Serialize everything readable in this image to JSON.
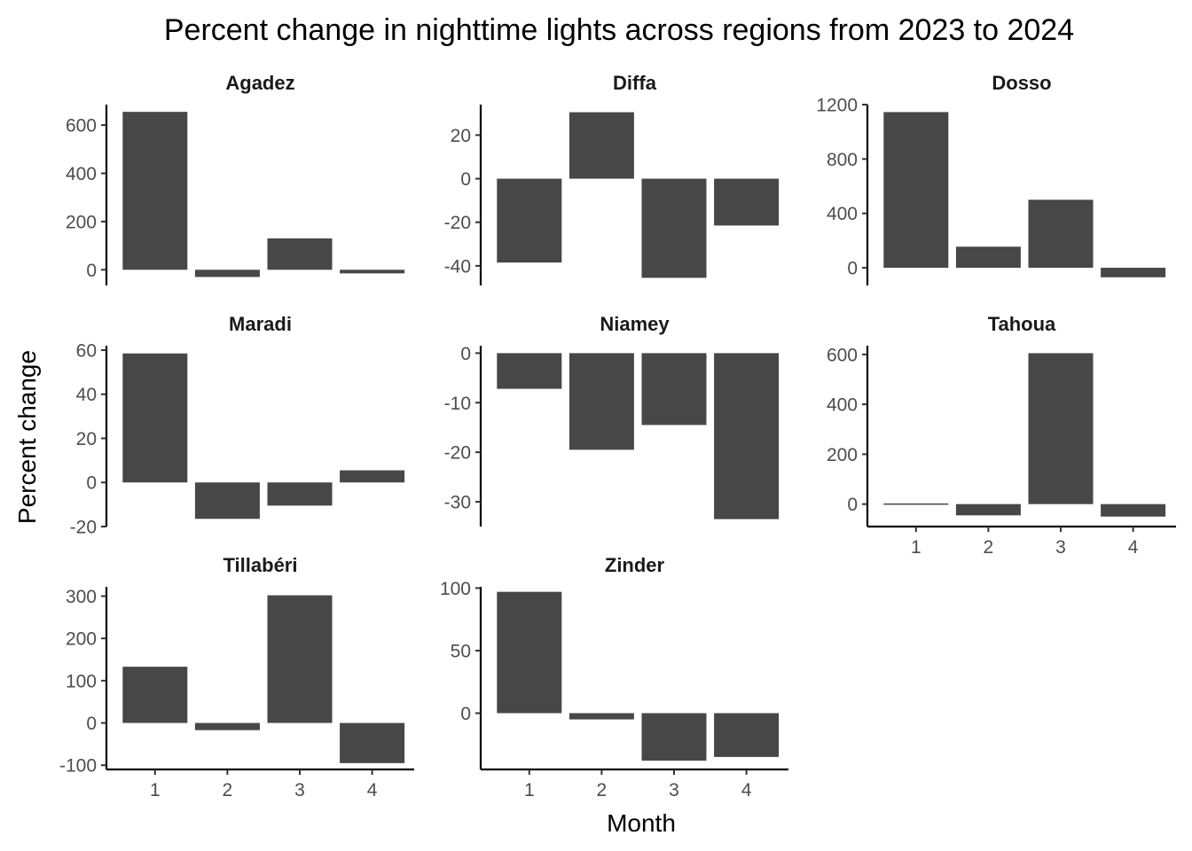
{
  "chart_data": {
    "type": "bar",
    "title": "Percent change in nighttime lights across regions from 2023 to 2024",
    "xlabel": "Month",
    "ylabel": "Percent change",
    "x_ticks": [
      "1",
      "2",
      "3",
      "4"
    ],
    "bar_color": "#474747",
    "grid": false,
    "legend": "none",
    "facets": [
      {
        "name": "Agadez",
        "x": [
          1,
          2,
          3,
          4
        ],
        "values": [
          655,
          -30,
          130,
          -15
        ],
        "ylim": [
          -65,
          685
        ],
        "yticks": [
          0,
          200,
          400,
          600
        ],
        "x_axis_shown": false
      },
      {
        "name": "Diffa",
        "x": [
          1,
          2,
          3,
          4
        ],
        "values": [
          -38.5,
          30.5,
          -45.5,
          -21.5
        ],
        "ylim": [
          -49,
          34
        ],
        "yticks": [
          -40,
          -20,
          0,
          20
        ],
        "x_axis_shown": false
      },
      {
        "name": "Dosso",
        "x": [
          1,
          2,
          3,
          4
        ],
        "values": [
          1145,
          155,
          500,
          -70
        ],
        "ylim": [
          -130,
          1200
        ],
        "yticks": [
          0,
          400,
          800,
          1200
        ],
        "x_axis_shown": false
      },
      {
        "name": "Maradi",
        "x": [
          1,
          2,
          3,
          4
        ],
        "values": [
          58.5,
          -16.5,
          -10.5,
          5.5
        ],
        "ylim": [
          -20,
          62
        ],
        "yticks": [
          -20,
          0,
          20,
          40,
          60
        ],
        "x_axis_shown": false
      },
      {
        "name": "Niamey",
        "x": [
          1,
          2,
          3,
          4
        ],
        "values": [
          -7.2,
          -19.5,
          -14.5,
          -33.5
        ],
        "ylim": [
          -35,
          1.5
        ],
        "yticks": [
          -30,
          -20,
          -10,
          0
        ],
        "x_axis_shown": false
      },
      {
        "name": "Tahoua",
        "x": [
          1,
          2,
          3,
          4
        ],
        "values": [
          2,
          -45,
          605,
          -50
        ],
        "ylim": [
          -90,
          635
        ],
        "yticks": [
          0,
          200,
          400,
          600
        ],
        "x_axis_shown": true
      },
      {
        "name": "Tillabéri",
        "x": [
          1,
          2,
          3,
          4
        ],
        "values": [
          133,
          -17,
          302,
          -95
        ],
        "ylim": [
          -110,
          322
        ],
        "yticks": [
          -100,
          0,
          100,
          200,
          300
        ],
        "x_axis_shown": true
      },
      {
        "name": "Zinder",
        "x": [
          1,
          2,
          3,
          4
        ],
        "values": [
          97,
          -5,
          -38,
          -35
        ],
        "ylim": [
          -45,
          101
        ],
        "yticks": [
          0,
          50,
          100
        ],
        "x_axis_shown": true
      }
    ]
  }
}
